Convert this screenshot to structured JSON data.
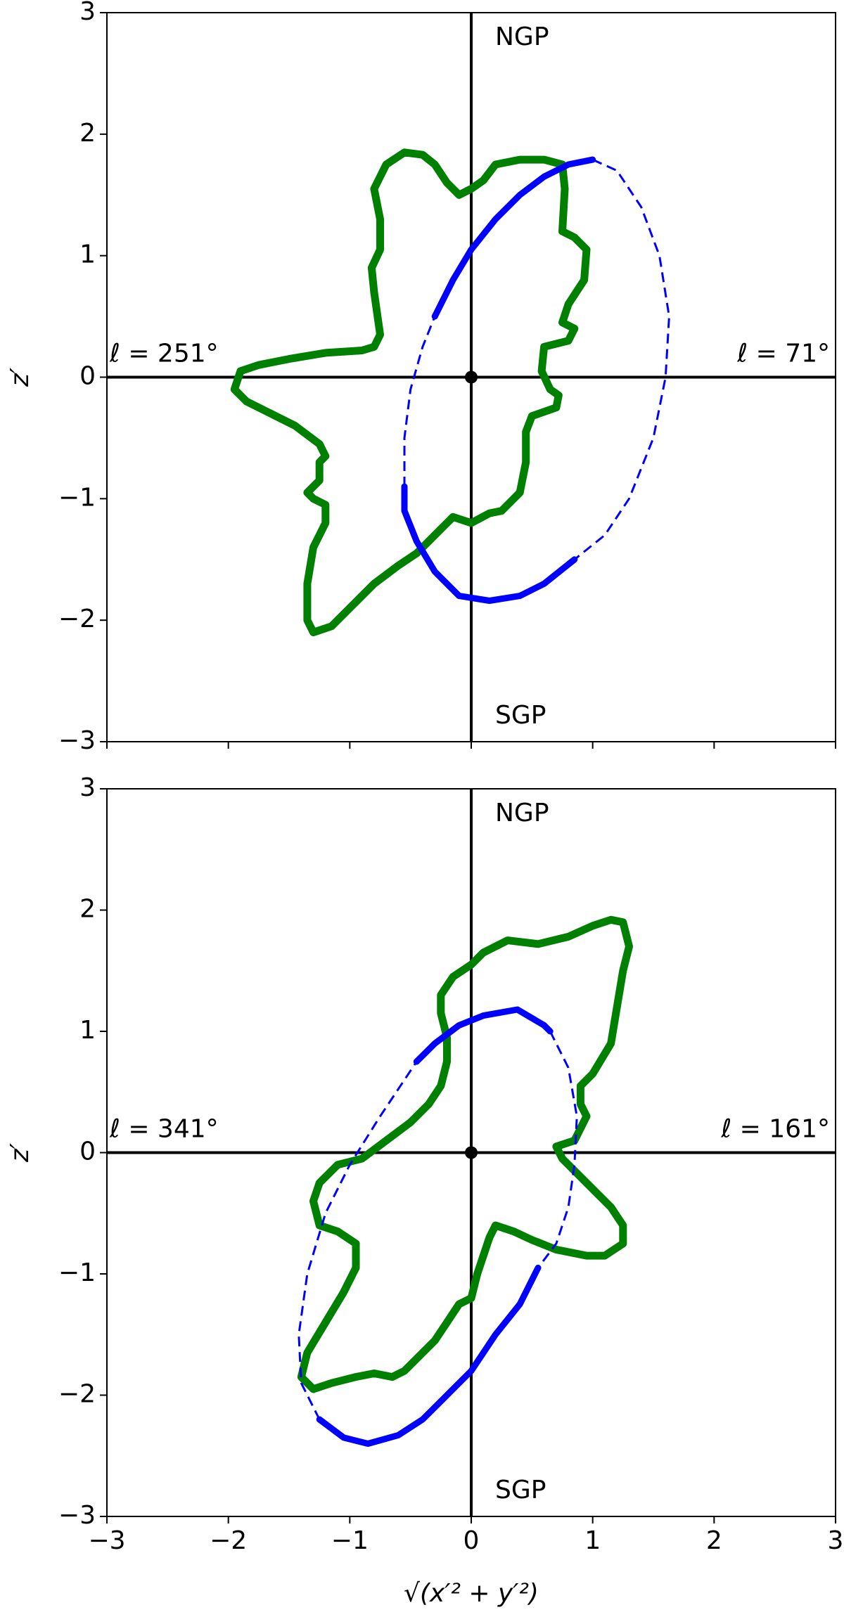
{
  "chart_data": [
    {
      "type": "line",
      "ylabel": "z′",
      "xlim": [
        -3,
        3
      ],
      "ylim": [
        -3,
        3
      ],
      "xticks": [
        -3,
        -2,
        -1,
        0,
        1,
        2,
        3
      ],
      "show_xtick_labels": false,
      "yticks": [
        {
          "value": -3,
          "label": "−3"
        },
        {
          "value": -2,
          "label": "−2"
        },
        {
          "value": -1,
          "label": "−1"
        },
        0,
        1,
        2,
        3
      ],
      "labels": {
        "north": "NGP",
        "south": "SGP",
        "left": "ℓ = 251°",
        "right": "ℓ =  71°"
      },
      "series": [
        {
          "color": "#008000",
          "style": "dots",
          "x": [
            0,
            0.1,
            0.2,
            0.4,
            0.6,
            0.75,
            0.77,
            0.75,
            0.85,
            0.95,
            0.93,
            0.8,
            0.75,
            0.85,
            0.8,
            0.6,
            0.58,
            0.65,
            0.72,
            0.7,
            0.5,
            0.45,
            0.45,
            0.4,
            0.3,
            0.25,
            0.15,
            0,
            -0.15,
            -0.3,
            -0.45,
            -0.6,
            -0.8,
            -1.0,
            -1.15,
            -1.3,
            -1.35,
            -1.35,
            -1.3,
            -1.2,
            -1.2,
            -1.3,
            -1.35,
            -1.25,
            -1.25,
            -1.2,
            -1.25,
            -1.45,
            -1.65,
            -1.85,
            -1.95,
            -1.9,
            -1.75,
            -1.5,
            -1.2,
            -0.9,
            -0.8,
            -0.75,
            -0.8,
            -0.82,
            -0.75,
            -0.75,
            -0.8,
            -0.75,
            -0.7,
            -0.55,
            -0.4,
            -0.3,
            -0.2,
            -0.1,
            0
          ],
          "y": [
            1.55,
            1.62,
            1.75,
            1.79,
            1.79,
            1.75,
            1.55,
            1.2,
            1.15,
            1.05,
            0.8,
            0.6,
            0.45,
            0.4,
            0.3,
            0.25,
            0.05,
            -0.1,
            -0.15,
            -0.25,
            -0.32,
            -0.45,
            -0.7,
            -0.95,
            -1.05,
            -1.1,
            -1.12,
            -1.2,
            -1.15,
            -1.3,
            -1.45,
            -1.55,
            -1.7,
            -1.9,
            -2.05,
            -2.1,
            -2.0,
            -1.7,
            -1.4,
            -1.2,
            -1.05,
            -1.0,
            -0.95,
            -0.85,
            -0.7,
            -0.65,
            -0.55,
            -0.4,
            -0.3,
            -0.2,
            -0.1,
            0.05,
            0.1,
            0.15,
            0.2,
            0.22,
            0.25,
            0.35,
            0.7,
            0.9,
            1.05,
            1.3,
            1.55,
            1.65,
            1.75,
            1.85,
            1.83,
            1.75,
            1.6,
            1.5,
            1.55
          ]
        },
        {
          "color": "#0000ff",
          "style": "solid",
          "x": [
            -0.3,
            -0.15,
            0,
            0.2,
            0.4,
            0.6,
            0.8,
            1.0
          ],
          "y": [
            0.5,
            0.8,
            1.05,
            1.3,
            1.5,
            1.65,
            1.75,
            1.79
          ]
        },
        {
          "color": "#0000ff",
          "style": "dashed",
          "x": [
            1.0,
            1.2,
            1.4,
            1.55,
            1.63,
            1.6,
            1.5,
            1.3,
            1.1,
            0.85
          ],
          "y": [
            1.79,
            1.7,
            1.4,
            1.0,
            0.5,
            0,
            -0.5,
            -1.0,
            -1.3,
            -1.5
          ]
        },
        {
          "color": "#0000ff",
          "style": "solid",
          "x": [
            0.85,
            0.6,
            0.4,
            0.15,
            -0.1,
            -0.3,
            -0.45,
            -0.55,
            -0.55
          ],
          "y": [
            -1.5,
            -1.7,
            -1.8,
            -1.84,
            -1.8,
            -1.6,
            -1.35,
            -1.1,
            -0.9
          ]
        },
        {
          "color": "#0000ff",
          "style": "dashed",
          "x": [
            -0.55,
            -0.55,
            -0.5,
            -0.4,
            -0.3
          ],
          "y": [
            -0.9,
            -0.5,
            -0.1,
            0.25,
            0.5
          ]
        }
      ]
    },
    {
      "type": "line",
      "ylabel": "z′",
      "xlabel": "√(x′² + y′²)",
      "xlim": [
        -3,
        3
      ],
      "ylim": [
        -3,
        3
      ],
      "xticks": [
        {
          "value": -3,
          "label": "−3"
        },
        {
          "value": -2,
          "label": "−2"
        },
        {
          "value": -1,
          "label": "−1"
        },
        0,
        1,
        2,
        3
      ],
      "show_xtick_labels": true,
      "yticks": [
        {
          "value": -3,
          "label": "−3"
        },
        {
          "value": -2,
          "label": "−2"
        },
        {
          "value": -1,
          "label": "−1"
        },
        0,
        1,
        2,
        3
      ],
      "labels": {
        "north": "NGP",
        "south": "SGP",
        "left": "ℓ = 341°",
        "right": "ℓ = 161°"
      },
      "series": [
        {
          "color": "#008000",
          "style": "dots",
          "x": [
            0,
            0.1,
            0.3,
            0.55,
            0.8,
            1.0,
            1.15,
            1.25,
            1.3,
            1.25,
            1.2,
            1.15,
            1.0,
            0.9,
            0.9,
            0.95,
            0.9,
            0.85,
            0.7,
            0.75,
            0.85,
            1.0,
            1.15,
            1.25,
            1.25,
            1.1,
            0.95,
            0.7,
            0.5,
            0.35,
            0.2,
            0.15,
            0.05,
            0,
            -0.1,
            -0.2,
            -0.3,
            -0.4,
            -0.55,
            -0.65,
            -0.8,
            -0.95,
            -1.15,
            -1.3,
            -1.4,
            -1.35,
            -1.2,
            -1.05,
            -0.95,
            -0.95,
            -1.1,
            -1.25,
            -1.3,
            -1.25,
            -1.1,
            -0.9,
            -0.7,
            -0.5,
            -0.35,
            -0.25,
            -0.2,
            -0.2,
            -0.25,
            -0.25,
            -0.15,
            0
          ],
          "y": [
            1.55,
            1.65,
            1.75,
            1.72,
            1.78,
            1.87,
            1.92,
            1.9,
            1.7,
            1.5,
            1.2,
            0.9,
            0.65,
            0.55,
            0.4,
            0.3,
            0.2,
            0.1,
            0.05,
            -0.05,
            -0.15,
            -0.3,
            -0.45,
            -0.6,
            -0.75,
            -0.85,
            -0.85,
            -0.8,
            -0.72,
            -0.65,
            -0.6,
            -0.7,
            -1.0,
            -1.2,
            -1.25,
            -1.4,
            -1.55,
            -1.65,
            -1.8,
            -1.85,
            -1.82,
            -1.85,
            -1.9,
            -1.95,
            -1.85,
            -1.65,
            -1.4,
            -1.15,
            -0.95,
            -0.75,
            -0.65,
            -0.6,
            -0.4,
            -0.25,
            -0.1,
            -0.05,
            0.1,
            0.25,
            0.4,
            0.55,
            0.75,
            0.95,
            1.15,
            1.3,
            1.45,
            1.55
          ]
        },
        {
          "color": "#0000ff",
          "style": "solid",
          "x": [
            -0.45,
            -0.3,
            -0.1,
            0.1,
            0.38,
            0.6,
            0.65
          ],
          "y": [
            0.75,
            0.9,
            1.05,
            1.13,
            1.18,
            1.05,
            1.0
          ]
        },
        {
          "color": "#0000ff",
          "style": "dashed",
          "x": [
            0.65,
            0.8,
            0.87,
            0.85,
            0.8,
            0.7,
            0.55
          ],
          "y": [
            1.0,
            0.7,
            0.3,
            -0.1,
            -0.45,
            -0.75,
            -0.95
          ]
        },
        {
          "color": "#0000ff",
          "style": "solid",
          "x": [
            0.55,
            0.4,
            0.2,
            0,
            -0.2,
            -0.4,
            -0.6,
            -0.85,
            -1.05,
            -1.25
          ],
          "y": [
            -0.95,
            -1.25,
            -1.5,
            -1.8,
            -2.0,
            -2.2,
            -2.33,
            -2.4,
            -2.35,
            -2.2
          ]
        },
        {
          "color": "#0000ff",
          "style": "dashed",
          "x": [
            -1.25,
            -1.4,
            -1.42,
            -1.35,
            -1.2,
            -1.0,
            -0.75,
            -0.45
          ],
          "y": [
            -2.2,
            -1.9,
            -1.5,
            -1.0,
            -0.5,
            -0.1,
            0.3,
            0.75
          ]
        }
      ]
    }
  ]
}
